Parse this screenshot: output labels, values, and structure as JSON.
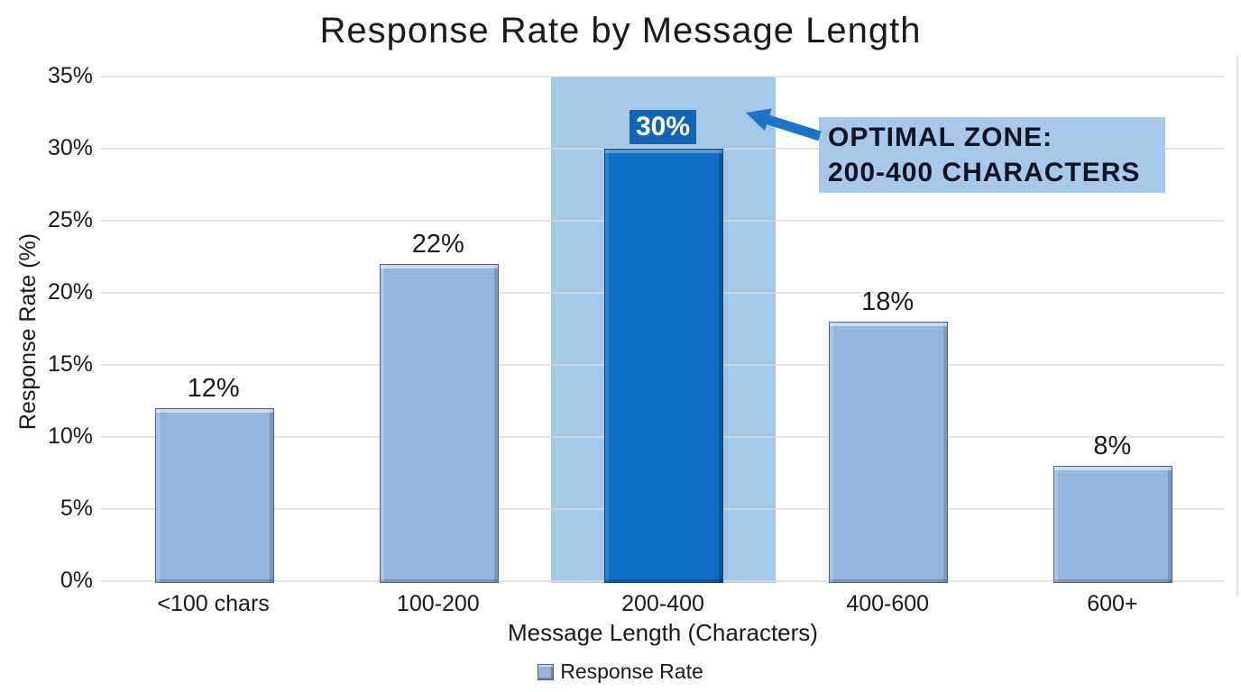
{
  "chart_data": {
    "type": "bar",
    "title": "Response Rate by Message Length",
    "xlabel": "Message Length (Characters)",
    "ylabel": "Response Rate (%)",
    "categories": [
      "<100 chars",
      "100-200",
      "200-400",
      "400-600",
      "600+"
    ],
    "values": [
      12,
      22,
      30,
      18,
      8
    ],
    "labels": [
      "12%",
      "22%",
      "30%",
      "18%",
      "8%"
    ],
    "ylim": [
      0,
      35
    ],
    "ytick_step": 5,
    "ytick_labels": [
      "0%",
      "5%",
      "10%",
      "15%",
      "20%",
      "25%",
      "30%",
      "35%"
    ],
    "grid": true,
    "highlight_index": 2,
    "legend": {
      "position": "bottom",
      "entries": [
        "Response Rate"
      ]
    },
    "annotation": {
      "line1": "OPTIMAL ZONE:",
      "line2": "200-400 CHARACTERS"
    }
  },
  "colors": {
    "bar_fill": "#92b4dd",
    "bar_border": "#47658f",
    "highlight_bar_fill": "#0d6fc5",
    "highlight_bar_border": "#07457f",
    "zone_band": "#a5c8e9",
    "annotation_bg": "#a7c8e8",
    "arrow": "#1c73c8",
    "value_chip_bg": "#1266b4",
    "value_chip_text": "#ffffff",
    "grid_line": "#d9d9d9",
    "text": "#1a1a1a"
  }
}
